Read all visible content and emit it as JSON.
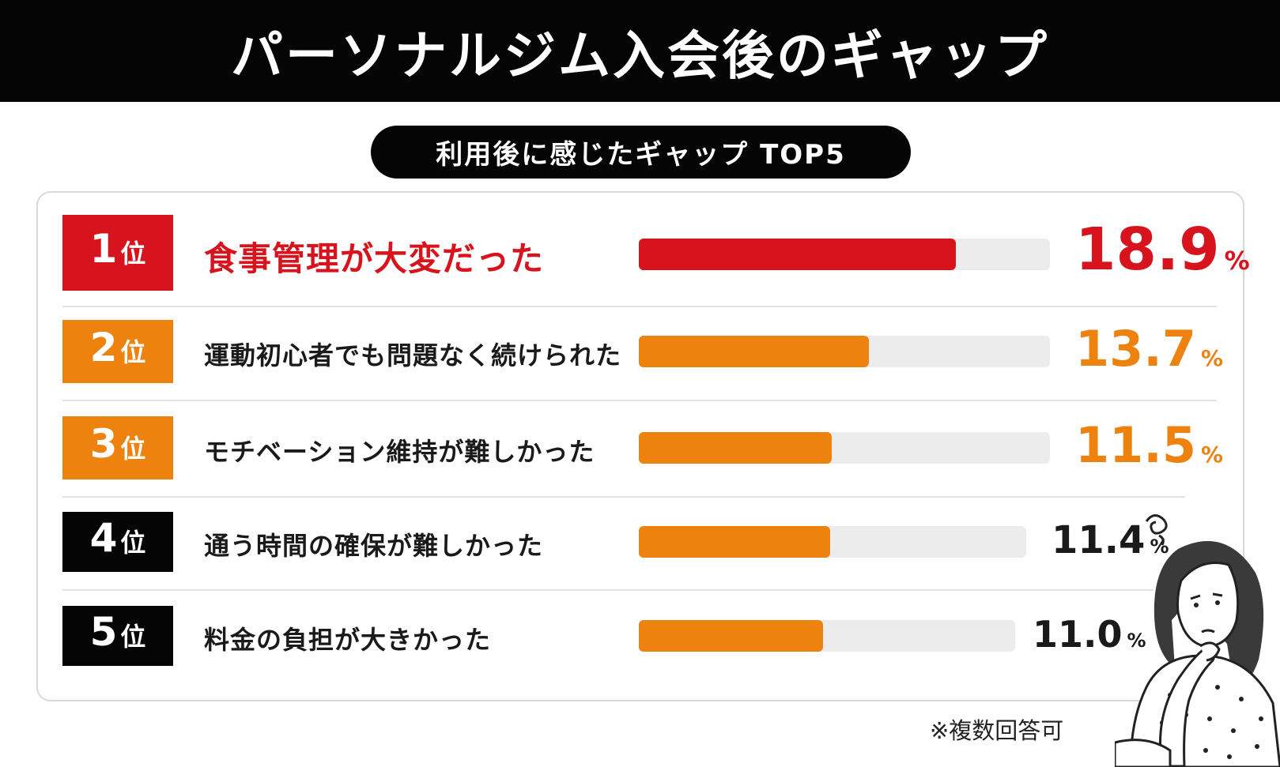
{
  "header": {
    "title": "パーソナルジム入会後のギャップ"
  },
  "subtitle": "利用後に感じたギャップ TOP5",
  "footnote": "※複数回答可",
  "colors": {
    "red": "#d7141d",
    "orange": "#ee820f",
    "black": "#050505",
    "track": "#ececec"
  },
  "chart_data": {
    "type": "bar",
    "title": "利用後に感じたギャップ TOP5",
    "unit": "%",
    "categories": [
      "食事管理が大変だった",
      "運動初心者でも問題なく続けられた",
      "モチベーション維持が難しかった",
      "通う時間の確保が難しかった",
      "料金の負担が大きかった"
    ],
    "values": [
      18.9,
      13.7,
      11.5,
      11.4,
      11.0
    ],
    "value_labels": [
      "18.9",
      "13.7",
      "11.5",
      "11.4",
      "11.0"
    ],
    "ranks": [
      {
        "num": "1",
        "suffix": "位"
      },
      {
        "num": "2",
        "suffix": "位"
      },
      {
        "num": "3",
        "suffix": "位"
      },
      {
        "num": "4",
        "suffix": "位"
      },
      {
        "num": "5",
        "suffix": "位"
      }
    ],
    "xlim": [
      0,
      25
    ],
    "orientation": "horizontal"
  }
}
